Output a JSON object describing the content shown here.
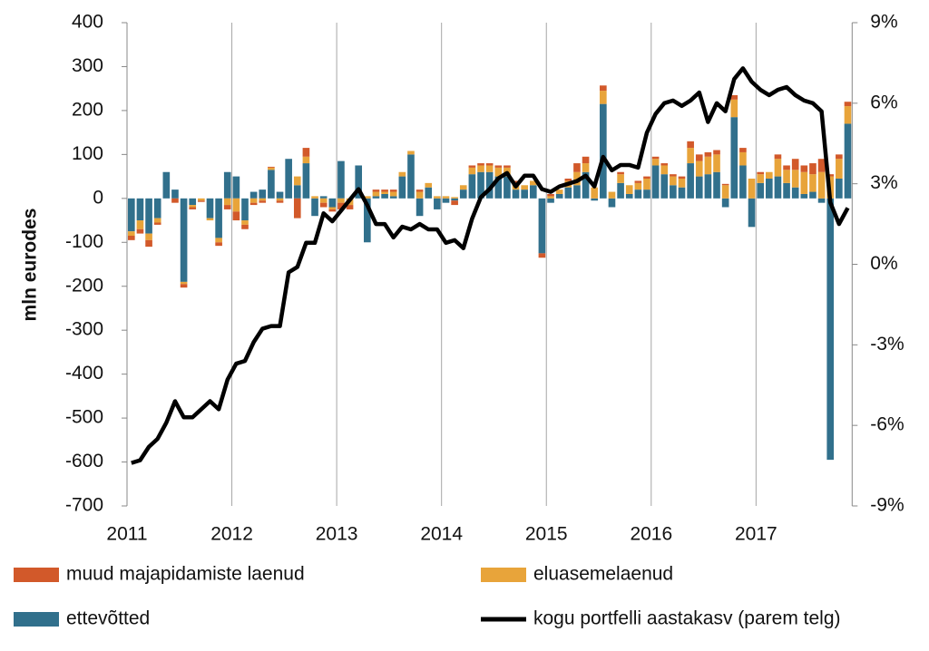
{
  "chart_data": {
    "type": "bar",
    "y_label": "mln eurodes",
    "categories": [
      "2011",
      null,
      null,
      null,
      null,
      null,
      null,
      null,
      null,
      null,
      null,
      null,
      "2012",
      null,
      null,
      null,
      null,
      null,
      null,
      null,
      null,
      null,
      null,
      null,
      "2013",
      null,
      null,
      null,
      null,
      null,
      null,
      null,
      null,
      null,
      null,
      null,
      "2014",
      null,
      null,
      null,
      null,
      null,
      null,
      null,
      null,
      null,
      null,
      null,
      "2015",
      null,
      null,
      null,
      null,
      null,
      null,
      null,
      null,
      null,
      null,
      null,
      "2016",
      null,
      null,
      null,
      null,
      null,
      null,
      null,
      null,
      null,
      null,
      null,
      "2017",
      null,
      null,
      null,
      null,
      null,
      null,
      null,
      null,
      null,
      null
    ],
    "series": [
      {
        "name": "muud majapidamiste laenud",
        "color": "#d2592a",
        "values": [
          -10,
          -10,
          -15,
          -5,
          0,
          -10,
          -8,
          -5,
          -3,
          0,
          -8,
          -10,
          -20,
          -10,
          -5,
          -5,
          2,
          -5,
          0,
          -45,
          20,
          0,
          -10,
          -5,
          -15,
          -10,
          0,
          0,
          5,
          5,
          5,
          0,
          0,
          5,
          0,
          0,
          0,
          -10,
          0,
          5,
          5,
          5,
          5,
          5,
          5,
          0,
          0,
          -10,
          5,
          0,
          5,
          20,
          15,
          0,
          12,
          0,
          5,
          0,
          5,
          5,
          5,
          5,
          5,
          5,
          15,
          15,
          10,
          10,
          3,
          10,
          10,
          0,
          5,
          0,
          10,
          10,
          25,
          15,
          25,
          30,
          5,
          10,
          10
        ]
      },
      {
        "name": "eluasemelaenud",
        "color": "#e8a43a",
        "values": [
          -10,
          -20,
          -15,
          -10,
          0,
          0,
          -5,
          -5,
          -5,
          -5,
          -10,
          -15,
          -30,
          -10,
          -10,
          -5,
          5,
          -5,
          0,
          20,
          15,
          5,
          -10,
          -5,
          -10,
          -15,
          0,
          5,
          10,
          5,
          10,
          10,
          8,
          15,
          10,
          5,
          5,
          3,
          10,
          15,
          15,
          15,
          20,
          20,
          15,
          10,
          10,
          0,
          5,
          10,
          15,
          30,
          20,
          25,
          30,
          15,
          20,
          20,
          15,
          25,
          15,
          20,
          20,
          20,
          35,
          35,
          40,
          40,
          30,
          40,
          30,
          45,
          20,
          15,
          40,
          30,
          40,
          50,
          40,
          60,
          50,
          45,
          40
        ]
      },
      {
        "name": "ettevõtted",
        "color": "#31708c",
        "values": [
          -75,
          -50,
          -80,
          -45,
          60,
          20,
          -190,
          -15,
          0,
          -45,
          -90,
          60,
          50,
          -50,
          15,
          20,
          65,
          15,
          90,
          30,
          80,
          -40,
          5,
          -20,
          85,
          0,
          75,
          -100,
          5,
          10,
          5,
          50,
          100,
          -40,
          25,
          -25,
          -10,
          -5,
          20,
          55,
          60,
          60,
          50,
          50,
          20,
          20,
          30,
          -125,
          -10,
          10,
          25,
          30,
          60,
          -5,
          215,
          -20,
          35,
          10,
          20,
          20,
          75,
          55,
          30,
          25,
          80,
          50,
          55,
          60,
          -20,
          185,
          75,
          -65,
          35,
          45,
          50,
          35,
          25,
          10,
          15,
          -10,
          -595,
          45,
          170
        ]
      },
      {
        "name": "kogu portfelli aastakasv (parem telg)",
        "color": "#000000",
        "type": "line",
        "axis": "y2",
        "values": [
          -7.4,
          -7.3,
          -6.8,
          -6.5,
          -5.9,
          -5.1,
          -5.7,
          -5.7,
          -5.4,
          -5.1,
          -5.4,
          -4.3,
          -3.7,
          -3.6,
          -2.9,
          -2.4,
          -2.3,
          -2.3,
          -0.3,
          -0.1,
          0.8,
          0.8,
          1.9,
          1.6,
          2.0,
          2.4,
          2.8,
          2.2,
          1.5,
          1.5,
          1.0,
          1.4,
          1.3,
          1.5,
          1.3,
          1.3,
          0.8,
          0.9,
          0.6,
          1.7,
          2.5,
          2.8,
          3.2,
          3.4,
          2.9,
          3.3,
          3.3,
          2.8,
          2.7,
          2.9,
          3.0,
          3.1,
          3.3,
          2.9,
          4.0,
          3.5,
          3.7,
          3.7,
          3.6,
          4.9,
          5.6,
          6.0,
          6.1,
          5.9,
          6.1,
          6.4,
          5.3,
          6.0,
          5.7,
          6.9,
          7.3,
          6.8,
          6.5,
          6.3,
          6.5,
          6.6,
          6.3,
          6.1,
          6.0,
          5.7,
          2.3,
          1.5,
          2.1
        ]
      }
    ],
    "ylim": [
      -700,
      400
    ],
    "yticks": [
      -700,
      -600,
      -500,
      -400,
      -300,
      -200,
      -100,
      0,
      100,
      200,
      300,
      400
    ],
    "y2lim": [
      -9,
      9
    ],
    "y2ticks": [
      {
        "value": -9,
        "label": "-9%"
      },
      {
        "value": -6,
        "label": "-6%"
      },
      {
        "value": -3,
        "label": "-3%"
      },
      {
        "value": 0,
        "label": "0%"
      },
      {
        "value": 3,
        "label": "3%"
      },
      {
        "value": 6,
        "label": "6%"
      },
      {
        "value": 9,
        "label": "9%"
      }
    ],
    "grid": true
  }
}
